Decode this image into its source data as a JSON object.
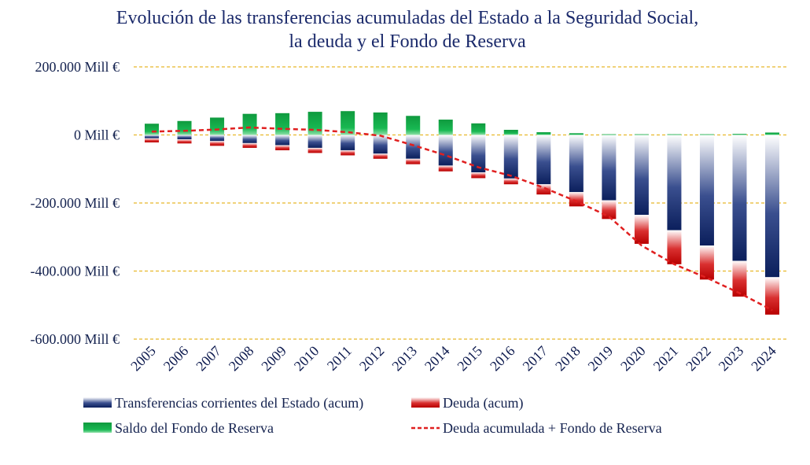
{
  "colors": {
    "title": "#1b2a6b",
    "gridline": "#e8b82a",
    "transfers_dark": "#0b1f5c",
    "transfers_light": "#ffffff",
    "debt_dark": "#c40000",
    "debt_light": "#ffffff",
    "fund": "#14b24e",
    "line": "#e02020"
  },
  "chart_data": {
    "type": "bar",
    "title": [
      "Evolución de las transferencias acumuladas del Estado a la Seguridad Social,",
      "la deuda y el Fondo de Reserva"
    ],
    "categories": [
      "2005",
      "2006",
      "2007",
      "2008",
      "2009",
      "2010",
      "2011",
      "2012",
      "2013",
      "2014",
      "2015",
      "2016",
      "2017",
      "2018",
      "2019",
      "2020",
      "2021",
      "2022",
      "2023",
      "2024"
    ],
    "ylim": [
      -600000,
      200000
    ],
    "yticks": [
      200000,
      0,
      -200000,
      -400000,
      -600000
    ],
    "ytick_labels": [
      "200.000 Mill €",
      "0 Mill €",
      "-200.000 Mill €",
      "-400.000 Mill €",
      "-600.000 Mill €"
    ],
    "grid": true,
    "legend_position": "bottom",
    "series": [
      {
        "name": "Transferencias corrientes del Estado (acum)",
        "kind": "bar",
        "values": [
          -10000,
          -13000,
          -18000,
          -24000,
          -30000,
          -38000,
          -45000,
          -55000,
          -70000,
          -90000,
          -110000,
          -128000,
          -145000,
          -168000,
          -192000,
          -235000,
          -280000,
          -325000,
          -370000,
          -418000
        ]
      },
      {
        "name": "Deuda (acum)",
        "kind": "bar",
        "values": [
          -12000,
          -12000,
          -14000,
          -14000,
          -15000,
          -15000,
          -15000,
          -15000,
          -16000,
          -17000,
          -17000,
          -17000,
          -30000,
          -42000,
          -55000,
          -85000,
          -100000,
          -100000,
          -105000,
          -110000
        ]
      },
      {
        "name": "Saldo del Fondo de Reserva",
        "kind": "bar",
        "values": [
          33000,
          41000,
          51000,
          62000,
          64000,
          68000,
          70000,
          66000,
          56000,
          45000,
          34000,
          15000,
          8000,
          5000,
          2000,
          2000,
          2000,
          2000,
          3000,
          7000
        ]
      },
      {
        "name": "Deuda acumulada + Fondo de Reserva",
        "kind": "line",
        "values": [
          10000,
          12000,
          16000,
          22000,
          18000,
          15000,
          8000,
          -2000,
          -30000,
          -60000,
          -95000,
          -120000,
          -155000,
          -195000,
          -240000,
          -325000,
          -380000,
          -420000,
          -465000,
          -515000
        ]
      }
    ]
  }
}
